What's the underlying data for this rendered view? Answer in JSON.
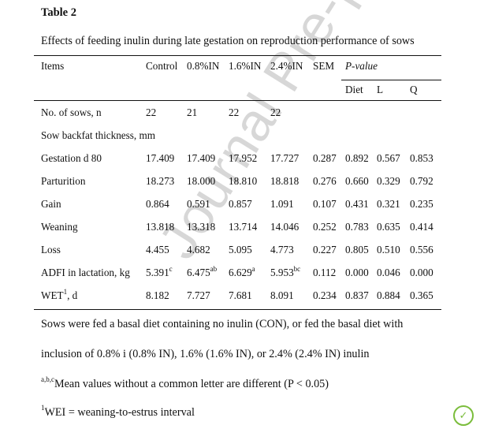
{
  "table_label": "Table 2",
  "caption": "Effects of feeding inulin during late gestation on reproduction performance of sows",
  "headers": {
    "items": "Items",
    "control": "Control",
    "in08": "0.8%IN",
    "in16": "1.6%IN",
    "in24": "2.4%IN",
    "sem": "SEM",
    "pvalue_title": "P-value",
    "diet": "Diet",
    "l": "L",
    "q": "Q"
  },
  "rows": [
    {
      "label": "No. of sows, n",
      "v": [
        "22",
        "21",
        "22",
        "22",
        "",
        "",
        "",
        ""
      ],
      "sup": [
        "",
        "",
        "",
        ""
      ]
    },
    {
      "label": "Sow backfat thickness, mm",
      "v": [
        "",
        "",
        "",
        "",
        "",
        "",
        "",
        ""
      ],
      "sup": [
        "",
        "",
        "",
        ""
      ]
    },
    {
      "label": "Gestation d 80",
      "v": [
        "17.409",
        "17.409",
        "17.952",
        "17.727",
        "0.287",
        "0.892",
        "0.567",
        "0.853"
      ],
      "sup": [
        "",
        "",
        "",
        ""
      ]
    },
    {
      "label": "Parturition",
      "v": [
        "18.273",
        "18.000",
        "18.810",
        "18.818",
        "0.276",
        "0.660",
        "0.329",
        "0.792"
      ],
      "sup": [
        "",
        "",
        "",
        ""
      ]
    },
    {
      "label": "Gain",
      "v": [
        "0.864",
        "0.591",
        "0.857",
        "1.091",
        "0.107",
        "0.431",
        "0.321",
        "0.235"
      ],
      "sup": [
        "",
        "",
        "",
        ""
      ]
    },
    {
      "label": "Weaning",
      "v": [
        "13.818",
        "13.318",
        "13.714",
        "14.046",
        "0.252",
        "0.783",
        "0.635",
        "0.414"
      ],
      "sup": [
        "",
        "",
        "",
        ""
      ]
    },
    {
      "label": "Loss",
      "v": [
        "4.455",
        "4.682",
        "5.095",
        "4.773",
        "0.227",
        "0.805",
        "0.510",
        "0.556"
      ],
      "sup": [
        "",
        "",
        "",
        ""
      ]
    },
    {
      "label": "ADFI in lactation, kg",
      "v": [
        "5.391",
        "6.475",
        "6.629",
        "5.953",
        "0.112",
        "0.000",
        "0.046",
        "0.000"
      ],
      "sup": [
        "c",
        "ab",
        "a",
        "bc"
      ]
    },
    {
      "label": "WET",
      "label_sup": "1",
      "label_suffix": ", d",
      "v": [
        "8.182",
        "7.727",
        "7.681",
        "8.091",
        "0.234",
        "0.837",
        "0.884",
        "0.365"
      ],
      "sup": [
        "",
        "",
        "",
        ""
      ]
    }
  ],
  "notes": {
    "line1": "Sows were fed a basal diet containing no inulin (CON), or fed the basal diet with",
    "line2": "inclusion of 0.8% i (0.8% IN), 1.6% (1.6% IN), or 2.4% (2.4% IN) inulin",
    "line3_sup": "a,b,c",
    "line3": "Mean values without a common letter are different (P < 0.05)",
    "line4_sup": "1",
    "line4": "WEI = weaning-to-estrus interval"
  },
  "watermark": "Journal Pre-proof",
  "colors": {
    "watermark": "#d7d7d7",
    "logo": "#7bbd3c"
  },
  "icons": {
    "logo": "journal-logo-icon"
  }
}
